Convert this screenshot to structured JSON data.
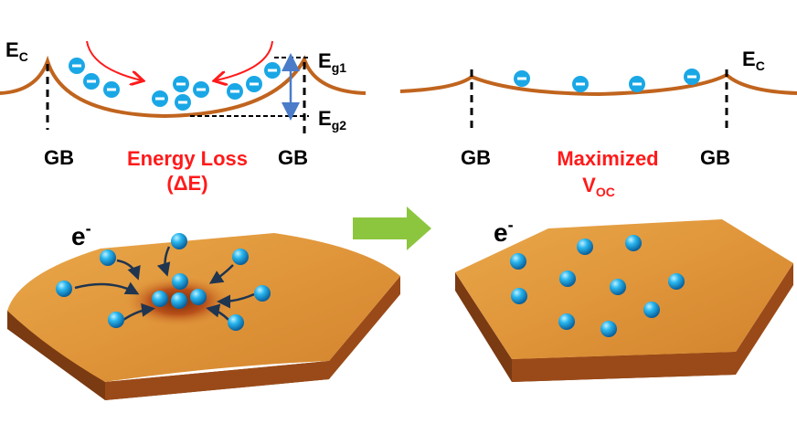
{
  "left_panel": {
    "ec_label": "E",
    "ec_sub": "C",
    "eg1_label": "E",
    "eg1_sub": "g1",
    "eg2_label": "E",
    "eg2_sub": "g2",
    "gb_left": "GB",
    "gb_right": "GB",
    "caption_line1": "Energy Loss",
    "caption_line2": "(ΔE)",
    "electron_label": "e",
    "electron_sup": "-"
  },
  "right_panel": {
    "ec_label": "E",
    "ec_sub": "C",
    "gb_left": "GB",
    "gb_right": "GB",
    "caption_line1": "Maximized",
    "caption_main": "V",
    "caption_sub": "OC",
    "electron_label": "e",
    "electron_sup": "-"
  },
  "colors": {
    "band_curve": "#c0641e",
    "caption_red": "#ff1a1a",
    "electron_blue": "#1aa7e6",
    "arrow_green": "#8cc63f",
    "surface_orange": "#e89a3a"
  }
}
